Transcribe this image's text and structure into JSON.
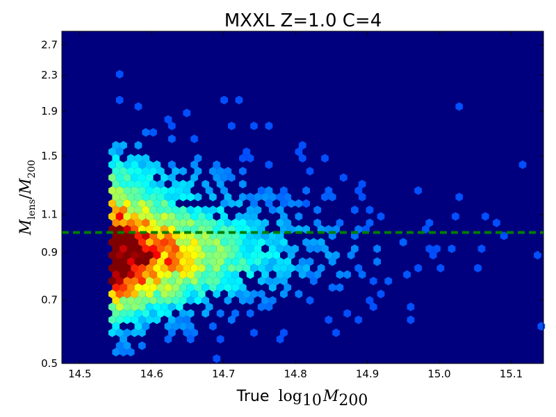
{
  "chart_data": {
    "type": "heatmap",
    "subtype": "hexbin",
    "colormap": "jet",
    "background_color": "#00007f",
    "title": "MXXL Z=1.0 C=4",
    "xlabel_prefix": "True",
    "xlabel_math": "log10 M200",
    "ylabel_math": "Mlens / M200",
    "yscale": "log",
    "xlim": [
      14.475,
      15.145
    ],
    "ylim": [
      0.5,
      2.9
    ],
    "x_ticks": [
      14.5,
      14.6,
      14.7,
      14.8,
      14.9,
      15.0,
      15.1
    ],
    "x_tick_labels": [
      "14.5",
      "14.6",
      "14.7",
      "14.8",
      "14.9",
      "15.0",
      "15.1"
    ],
    "y_ticks": [
      0.5,
      0.7,
      0.9,
      1.1,
      1.5,
      1.9,
      2.3,
      2.7
    ],
    "y_tick_labels": [
      "0.5",
      "0.7",
      "0.9",
      "1.1",
      "1.5",
      "1.9",
      "2.3",
      "2.7"
    ],
    "reference_line": {
      "y": 1.0,
      "style": "dashed",
      "color": "#007f00"
    },
    "grid": false,
    "legend": "none"
  }
}
